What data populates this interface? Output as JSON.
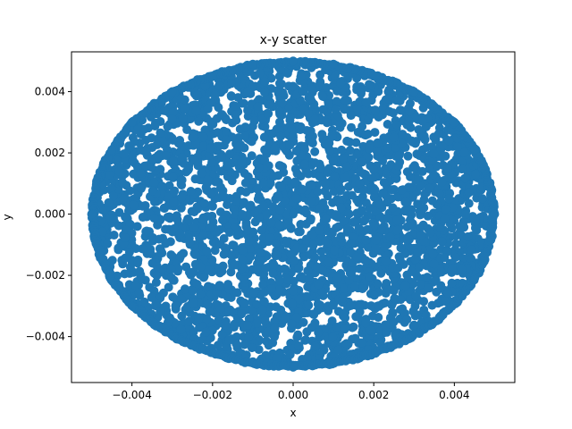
{
  "chart_data": {
    "type": "scatter",
    "title": "x-y scatter",
    "xlabel": "x",
    "ylabel": "y",
    "xlim": [
      -0.0055,
      0.0055
    ],
    "ylim": [
      -0.0055,
      0.0053
    ],
    "xticks": [
      -0.004,
      -0.002,
      0.0,
      0.002,
      0.004
    ],
    "xtick_labels": [
      "−0.004",
      "−0.002",
      "0.000",
      "0.002",
      "0.004"
    ],
    "yticks": [
      -0.004,
      -0.002,
      0.0,
      0.002,
      0.004
    ],
    "ytick_labels": [
      "−0.004",
      "−0.002",
      "0.000",
      "0.002",
      "0.004"
    ],
    "series": [
      {
        "color": "#1f77b4",
        "marker": "circle",
        "shape": "points filling a disk centered at (0, 0) with radius 0.005",
        "center": [
          0.0,
          0.0
        ],
        "radius": 0.005,
        "x": [
          -0.005,
          -0.0045,
          -0.004,
          -0.003,
          -0.002,
          -0.001,
          0.0,
          0.001,
          0.002,
          0.003,
          0.004,
          0.0045,
          0.005,
          0.0,
          0.0,
          0.0,
          0.0,
          0.0025,
          -0.0025,
          0.0025,
          -0.0025
        ],
        "y": [
          0.0,
          0.0021,
          0.003,
          0.004,
          0.0045,
          0.0049,
          0.005,
          0.0049,
          0.0045,
          0.004,
          0.003,
          0.0021,
          0.0,
          -0.005,
          0.0025,
          -0.0025,
          0.0,
          0.0025,
          0.0025,
          -0.0025,
          -0.0025
        ]
      }
    ],
    "grid": false,
    "legend": "none"
  }
}
